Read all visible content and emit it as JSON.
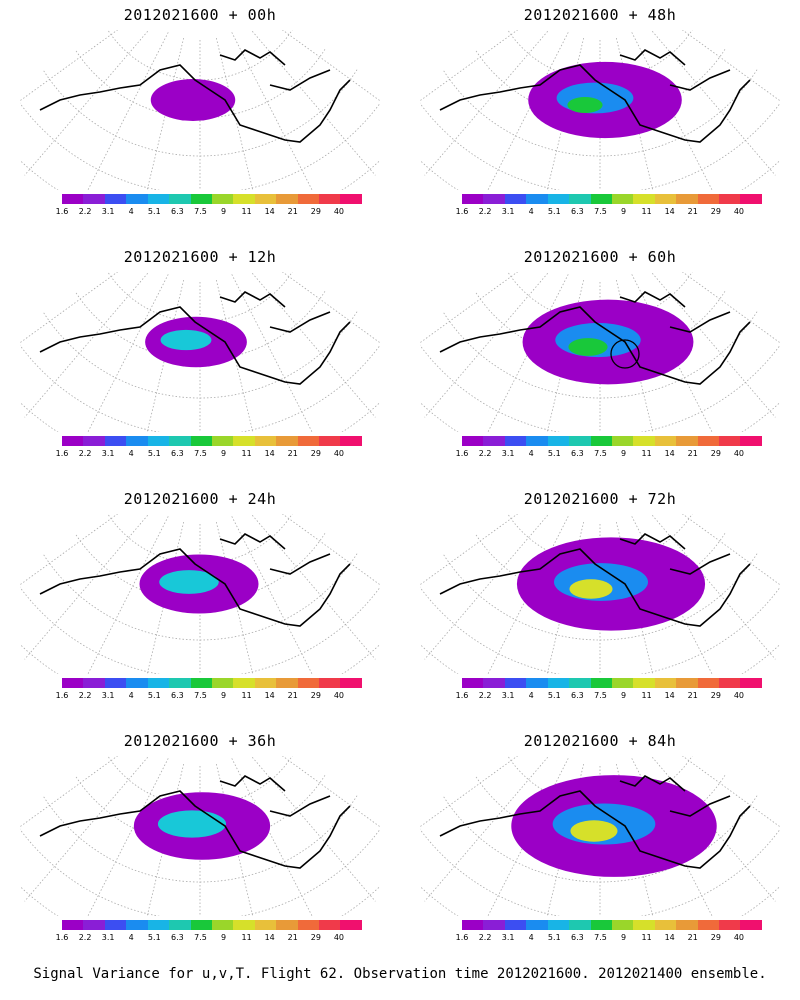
{
  "caption": "Signal Variance for u,v,T. Flight 62. Observation time 2012021600. 2012021400 ensemble.",
  "colorbar": {
    "colors": [
      "#9b00c6",
      "#8a1ed6",
      "#3c4ef2",
      "#1a8cf0",
      "#18b4e6",
      "#1ec8b0",
      "#19c83a",
      "#9ad62a",
      "#d6e02a",
      "#e8c03a",
      "#e89a38",
      "#f06a3a",
      "#f03a4a",
      "#f0106e"
    ],
    "ticks": [
      "1.6",
      "2.2",
      "3.1",
      "4",
      "5.1",
      "6.3",
      "7.5",
      "9",
      "11",
      "14",
      "21",
      "29",
      "40"
    ]
  },
  "map_colors": {
    "low": "#9b00c6",
    "mid": "#1a8cf0",
    "cyan": "#18c8d8",
    "green": "#19c83a",
    "yellow": "#d6e02a",
    "coast": "#000000",
    "grid": "#aaaaaa"
  },
  "panels": [
    {
      "title": "2012021600 + 00h",
      "level": 1
    },
    {
      "title": "2012021600 + 48h",
      "level": 5
    },
    {
      "title": "2012021600 + 12h",
      "level": 2
    },
    {
      "title": "2012021600 + 60h",
      "level": 6
    },
    {
      "title": "2012021600 + 24h",
      "level": 3
    },
    {
      "title": "2012021600 + 72h",
      "level": 7
    },
    {
      "title": "2012021600 + 36h",
      "level": 4
    },
    {
      "title": "2012021600 + 84h",
      "level": 8
    }
  ]
}
